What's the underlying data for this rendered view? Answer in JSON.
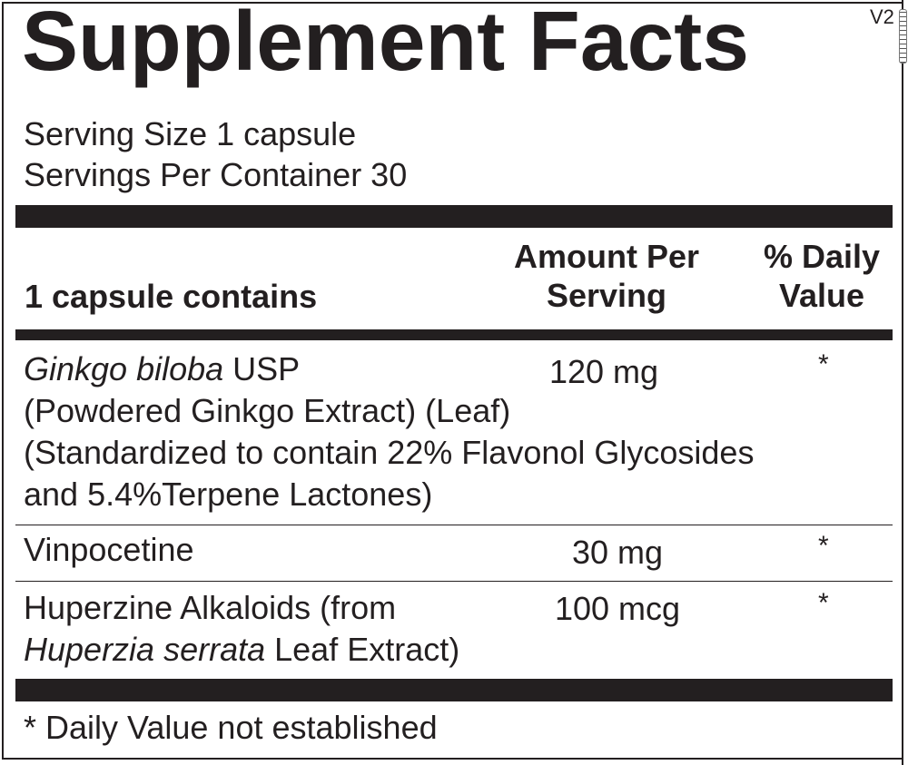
{
  "title": "Supplement Facts",
  "version": "V2",
  "serving_size": "Serving Size 1 capsule",
  "servings_per_container": "Servings Per Container 30",
  "header": {
    "contains": "1 capsule contains",
    "amount_line1": "Amount Per",
    "amount_line2": "Serving",
    "dv_line1": "% Daily",
    "dv_line2": "Value"
  },
  "rows": [
    {
      "name_italic": "Ginkgo biloba",
      "name_rest": " USP",
      "line2": "(Powdered Ginkgo Extract) (Leaf)",
      "line3": "(Standardized to contain 22% Flavonol Glycosides",
      "line4": "and 5.4%Terpene Lactones)",
      "amount": "120 mg",
      "dv": "*"
    },
    {
      "name": "Vinpocetine",
      "amount": "30 mg",
      "dv": "*"
    },
    {
      "name": "Huperzine Alkaloids (from",
      "line2_italic": "Huperzia serrata",
      "line2_rest": " Leaf Extract)",
      "amount": "100 mcg",
      "dv": "*"
    }
  ],
  "footnote": "* Daily Value not established"
}
